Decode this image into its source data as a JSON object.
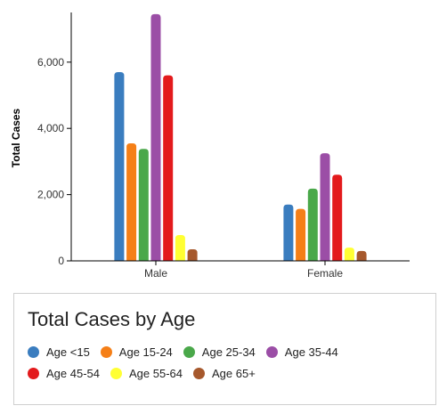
{
  "chart_data": {
    "type": "bar",
    "categories": [
      "Male",
      "Female"
    ],
    "ylabel": "Total Cases",
    "xlabel": "",
    "ylim": [
      0,
      7500
    ],
    "yticks": [
      0,
      2000,
      4000,
      6000
    ],
    "ytick_labels": [
      "0",
      "2,000",
      "4,000",
      "6,000"
    ],
    "grid": false,
    "series": [
      {
        "name": "Age <15",
        "color": "#3a7dbf",
        "values": [
          5700,
          1700
        ]
      },
      {
        "name": "Age 15-24",
        "color": "#f57f17",
        "values": [
          3550,
          1570
        ]
      },
      {
        "name": "Age 25-34",
        "color": "#4aa84a",
        "values": [
          3380,
          2180
        ]
      },
      {
        "name": "Age 35-44",
        "color": "#9b4ea6",
        "values": [
          7450,
          3250
        ]
      },
      {
        "name": "Age 45-54",
        "color": "#e31a1c",
        "values": [
          5600,
          2600
        ]
      },
      {
        "name": "Age 55-64",
        "color": "#ffff33",
        "values": [
          780,
          400
        ]
      },
      {
        "name": "Age 65+",
        "color": "#a6582c",
        "values": [
          350,
          300
        ]
      }
    ]
  },
  "legend": {
    "title": "Total Cases by Age",
    "placement": "bottom"
  }
}
